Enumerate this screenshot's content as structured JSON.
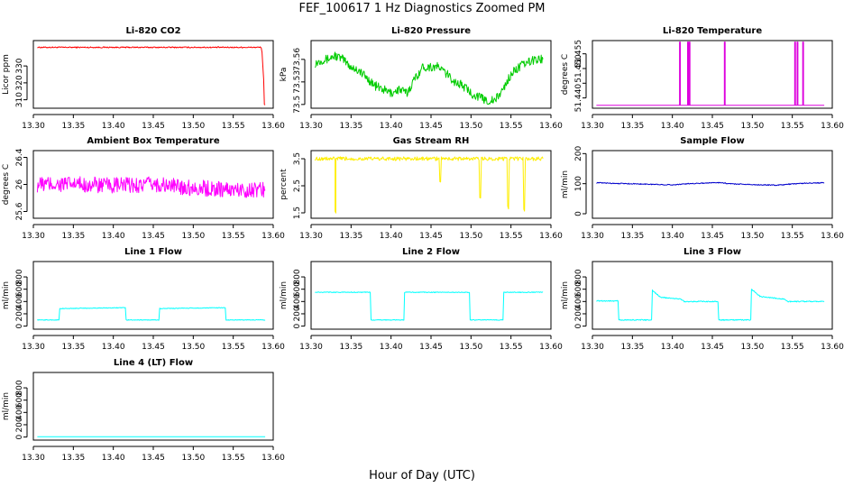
{
  "title": "FEF_100617  1 Hz Diagnostics Zoomed PM",
  "xlabel": "Hour of Day (UTC)",
  "chart_data": [
    {
      "type": "line",
      "title": "Li-820 CO2",
      "ylabel": "Licor ppm",
      "color": "#ff0000",
      "xlim": [
        13.3,
        13.6
      ],
      "ylim": [
        305,
        345
      ],
      "yticks": [
        310,
        320,
        330
      ],
      "xticks": [
        "13.30",
        "13.35",
        "13.40",
        "13.45",
        "13.50",
        "13.55",
        "13.60"
      ],
      "series": [
        {
          "name": "Li-820 CO2",
          "noise": 0.35,
          "x": [
            13.305,
            13.585,
            13.586,
            13.588,
            13.589,
            13.59
          ],
          "y": [
            341,
            341,
            338,
            322,
            307,
            307
          ]
        }
      ]
    },
    {
      "type": "line",
      "title": "Li-820 Pressure",
      "ylabel": "kPa",
      "color": "#00cc00",
      "xlim": [
        13.3,
        13.6
      ],
      "ylim": [
        73.495,
        73.585
      ],
      "yticks": [
        73.5,
        73.53,
        73.56
      ],
      "xticks": [
        "13.30",
        "13.35",
        "13.40",
        "13.45",
        "13.50",
        "13.55",
        "13.60"
      ],
      "series": [
        {
          "name": "Li-820 Pressure",
          "noise": 0.006,
          "x": [
            13.305,
            13.315,
            13.32,
            13.33,
            13.34,
            13.35,
            13.36,
            13.37,
            13.38,
            13.39,
            13.4,
            13.41,
            13.42,
            13.43,
            13.44,
            13.45,
            13.46,
            13.47,
            13.48,
            13.49,
            13.5,
            13.51,
            13.52,
            13.53,
            13.54,
            13.55,
            13.56,
            13.57,
            13.58,
            13.59
          ],
          "y": [
            73.555,
            73.56,
            73.56,
            73.565,
            73.56,
            73.55,
            73.545,
            73.535,
            73.525,
            73.52,
            73.515,
            73.52,
            73.515,
            73.535,
            73.55,
            73.55,
            73.55,
            73.54,
            73.53,
            73.525,
            73.515,
            73.51,
            73.505,
            73.505,
            73.52,
            73.54,
            73.55,
            73.555,
            73.56,
            73.56
          ]
        }
      ]
    },
    {
      "type": "line",
      "title": "Li-820 Temperature",
      "ylabel": "degrees C",
      "color": "#dd00dd",
      "xlim": [
        13.3,
        13.6
      ],
      "ylim": [
        51.4365,
        51.4595
      ],
      "yticks": [
        51.44,
        51.445,
        51.45,
        51.455
      ],
      "ytick_labels": [
        "51.440",
        "",
        "51.450",
        "51.455"
      ],
      "xticks": [
        "13.30",
        "13.35",
        "13.40",
        "13.45",
        "13.50",
        "13.55",
        "13.60"
      ],
      "series": [
        {
          "name": "Li-820 Temperature",
          "noise": 0,
          "x": [
            13.305,
            13.409,
            13.409,
            13.41,
            13.41,
            13.419,
            13.419,
            13.42,
            13.42,
            13.421,
            13.421,
            13.422,
            13.422,
            13.465,
            13.465,
            13.466,
            13.466,
            13.553,
            13.553,
            13.554,
            13.554,
            13.556,
            13.556,
            13.557,
            13.557,
            13.563,
            13.563,
            13.564,
            13.564,
            13.59
          ],
          "y": [
            51.4375,
            51.4375,
            51.459,
            51.459,
            51.4375,
            51.4375,
            51.459,
            51.459,
            51.4375,
            51.4375,
            51.459,
            51.459,
            51.4375,
            51.4375,
            51.459,
            51.459,
            51.4375,
            51.4375,
            51.459,
            51.459,
            51.4375,
            51.4375,
            51.459,
            51.459,
            51.4375,
            51.4375,
            51.459,
            51.459,
            51.4375,
            51.4375
          ]
        }
      ]
    },
    {
      "type": "line",
      "title": "Ambient Box Temperature",
      "ylabel": "degrees C",
      "color": "#ff00ff",
      "xlim": [
        13.3,
        13.6
      ],
      "ylim": [
        25.5,
        26.5
      ],
      "yticks": [
        25.6,
        26.0,
        26.4
      ],
      "xticks": [
        "13.30",
        "13.35",
        "13.40",
        "13.45",
        "13.50",
        "13.55",
        "13.60"
      ],
      "series": [
        {
          "name": "Ambient Box Temperature",
          "noise": 0.12,
          "x": [
            13.305,
            13.35,
            13.4,
            13.45,
            13.5,
            13.55,
            13.59
          ],
          "y": [
            26.0,
            26.0,
            25.98,
            26.0,
            25.95,
            25.92,
            25.92
          ]
        }
      ]
    },
    {
      "type": "line",
      "title": "Gas Stream RH",
      "ylabel": "percent",
      "color": "#ffee00",
      "xlim": [
        13.3,
        13.6
      ],
      "ylim": [
        1.3,
        3.8
      ],
      "yticks": [
        1.5,
        2.5,
        3.5
      ],
      "xticks": [
        "13.30",
        "13.35",
        "13.40",
        "13.45",
        "13.50",
        "13.55",
        "13.60"
      ],
      "series": [
        {
          "name": "Gas Stream RH",
          "noise": 0.07,
          "x": [
            13.305,
            13.33,
            13.33,
            13.331,
            13.331,
            13.46,
            13.461,
            13.462,
            13.463,
            13.51,
            13.511,
            13.512,
            13.513,
            13.545,
            13.546,
            13.547,
            13.548,
            13.565,
            13.566,
            13.567,
            13.568,
            13.59
          ],
          "y": [
            3.5,
            3.5,
            1.5,
            1.5,
            3.5,
            3.5,
            2.7,
            2.7,
            3.5,
            3.5,
            2.0,
            2.0,
            3.5,
            3.5,
            1.7,
            1.7,
            3.5,
            3.5,
            1.6,
            1.6,
            3.5,
            3.5
          ]
        }
      ]
    },
    {
      "type": "line",
      "title": "Sample Flow",
      "ylabel": "ml/min",
      "color": "#0000cc",
      "xlim": [
        13.3,
        13.6
      ],
      "ylim": [
        -15,
        210
      ],
      "yticks": [
        0,
        100,
        200
      ],
      "xticks": [
        "13.30",
        "13.35",
        "13.40",
        "13.45",
        "13.50",
        "13.55",
        "13.60"
      ],
      "series": [
        {
          "name": "Sample Flow",
          "noise": 1.5,
          "x": [
            13.305,
            13.33,
            13.36,
            13.4,
            13.42,
            13.46,
            13.47,
            13.5,
            13.53,
            13.56,
            13.59
          ],
          "y": [
            103,
            101,
            99,
            96,
            100,
            104,
            100,
            97,
            95,
            101,
            103
          ]
        }
      ]
    },
    {
      "type": "line",
      "title": "Line 1 Flow",
      "ylabel": "ml/min",
      "color": "#00ffff",
      "xlim": [
        13.3,
        13.6
      ],
      "ylim": [
        -50,
        1050
      ],
      "yticks": [
        0,
        200,
        400,
        600,
        800
      ],
      "xticks": [
        "13.30",
        "13.35",
        "13.40",
        "13.45",
        "13.50",
        "13.55",
        "13.60"
      ],
      "series": [
        {
          "name": "Line 1 Flow",
          "noise": 5,
          "x": [
            13.305,
            13.332,
            13.333,
            13.415,
            13.416,
            13.457,
            13.458,
            13.54,
            13.541,
            13.59
          ],
          "y": [
            100,
            100,
            285,
            300,
            100,
            100,
            285,
            300,
            100,
            100
          ]
        }
      ]
    },
    {
      "type": "line",
      "title": "Line 2 Flow",
      "ylabel": "ml/min",
      "color": "#00ffff",
      "xlim": [
        13.3,
        13.6
      ],
      "ylim": [
        -50,
        1050
      ],
      "yticks": [
        0,
        200,
        400,
        600,
        800
      ],
      "xticks": [
        "13.30",
        "13.35",
        "13.40",
        "13.45",
        "13.50",
        "13.55",
        "13.60"
      ],
      "series": [
        {
          "name": "Line 2 Flow",
          "noise": 6,
          "x": [
            13.305,
            13.374,
            13.375,
            13.416,
            13.417,
            13.498,
            13.499,
            13.54,
            13.541,
            13.59
          ],
          "y": [
            550,
            550,
            100,
            100,
            550,
            550,
            100,
            100,
            550,
            550
          ]
        }
      ]
    },
    {
      "type": "line",
      "title": "Line 3 Flow",
      "ylabel": "ml/min",
      "color": "#00ffff",
      "xlim": [
        13.3,
        13.6
      ],
      "ylim": [
        -50,
        1050
      ],
      "yticks": [
        0,
        200,
        400,
        600,
        800
      ],
      "xticks": [
        "13.30",
        "13.35",
        "13.40",
        "13.45",
        "13.50",
        "13.55",
        "13.60"
      ],
      "series": [
        {
          "name": "Line 3 Flow",
          "noise": 8,
          "x": [
            13.305,
            13.332,
            13.333,
            13.374,
            13.375,
            13.385,
            13.41,
            13.415,
            13.45,
            13.457,
            13.458,
            13.498,
            13.499,
            13.51,
            13.54,
            13.545,
            13.59
          ],
          "y": [
            410,
            410,
            100,
            100,
            580,
            470,
            440,
            400,
            400,
            400,
            100,
            100,
            600,
            480,
            440,
            400,
            400
          ]
        }
      ]
    },
    {
      "type": "line",
      "title": "Line 4 (LT) Flow",
      "ylabel": "ml/min",
      "color": "#00ffff",
      "xlim": [
        13.3,
        13.6
      ],
      "ylim": [
        -50,
        1050
      ],
      "yticks": [
        0,
        200,
        400,
        600,
        800
      ],
      "xticks": [
        "13.30",
        "13.35",
        "13.40",
        "13.45",
        "13.50",
        "13.55",
        "13.60"
      ],
      "series": [
        {
          "name": "Line 4 (LT) Flow",
          "noise": 1,
          "x": [
            13.305,
            13.59
          ],
          "y": [
            5,
            5
          ]
        }
      ]
    }
  ]
}
